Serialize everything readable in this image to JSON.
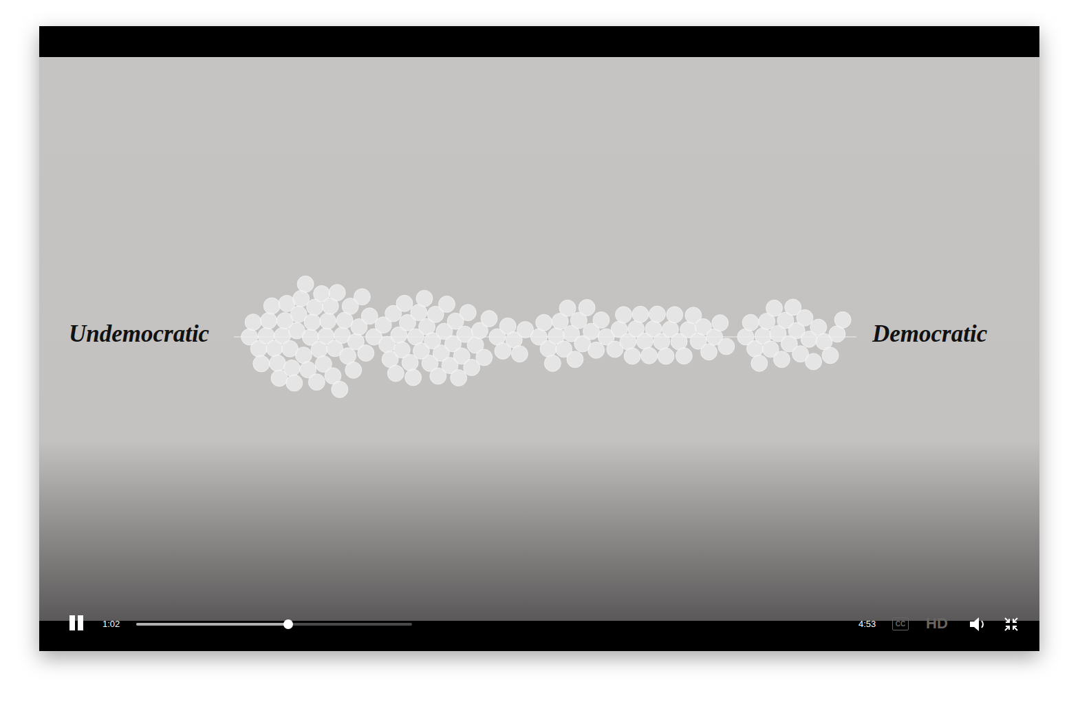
{
  "player": {
    "current_time": "1:02",
    "duration": "4:53",
    "played_fraction": 0.55,
    "buttons": [
      "CC",
      "HD"
    ]
  },
  "chart_data": {
    "type": "beeswarm",
    "left_label": "Undemocratic",
    "right_label": "Democratic",
    "xlim": [
      0,
      100
    ],
    "tick_labels": false,
    "color": "#ececec",
    "x": [
      2.5,
      3.1,
      4.0,
      4.4,
      5.2,
      5.6,
      6.1,
      6.5,
      7.0,
      7.3,
      7.8,
      8.2,
      8.5,
      9.0,
      9.3,
      9.7,
      10.1,
      10.4,
      10.8,
      11.2,
      11.5,
      11.9,
      12.3,
      12.6,
      13.0,
      13.3,
      13.7,
      14.1,
      14.4,
      14.8,
      15.1,
      15.5,
      15.9,
      16.2,
      16.6,
      17.0,
      17.4,
      17.8,
      18.3,
      18.7,
      19.2,
      19.6,
      20.1,
      20.6,
      21.2,
      21.8,
      22.5,
      24.0,
      24.6,
      25.1,
      25.6,
      26.0,
      26.5,
      27.0,
      27.4,
      27.9,
      28.3,
      28.8,
      29.2,
      29.7,
      30.1,
      30.6,
      31.0,
      31.5,
      31.9,
      32.4,
      32.8,
      33.3,
      33.8,
      34.2,
      34.7,
      35.2,
      35.6,
      36.1,
      36.6,
      37.1,
      37.6,
      38.2,
      38.8,
      39.5,
      40.2,
      41.0,
      42.3,
      43.2,
      44.0,
      45.0,
      45.9,
      46.8,
      49.0,
      49.8,
      50.5,
      51.2,
      51.8,
      52.4,
      53.0,
      53.6,
      54.2,
      54.8,
      55.4,
      56.0,
      56.7,
      57.4,
      58.2,
      59.0,
      59.8,
      61.2,
      61.9,
      62.6,
      63.3,
      64.0,
      64.6,
      65.3,
      66.0,
      66.7,
      67.4,
      68.0,
      68.7,
      69.4,
      70.1,
      70.8,
      71.5,
      72.3,
      73.0,
      73.8,
      74.6,
      75.4,
      76.3,
      77.2,
      78.1,
      79.1,
      82.2,
      83.0,
      83.7,
      84.4,
      85.0,
      85.6,
      86.2,
      86.8,
      87.4,
      88.0,
      88.6,
      89.2,
      89.8,
      90.4,
      91.0,
      91.7,
      92.4,
      93.1,
      93.9,
      94.8,
      95.8,
      96.9,
      97.8
    ]
  }
}
